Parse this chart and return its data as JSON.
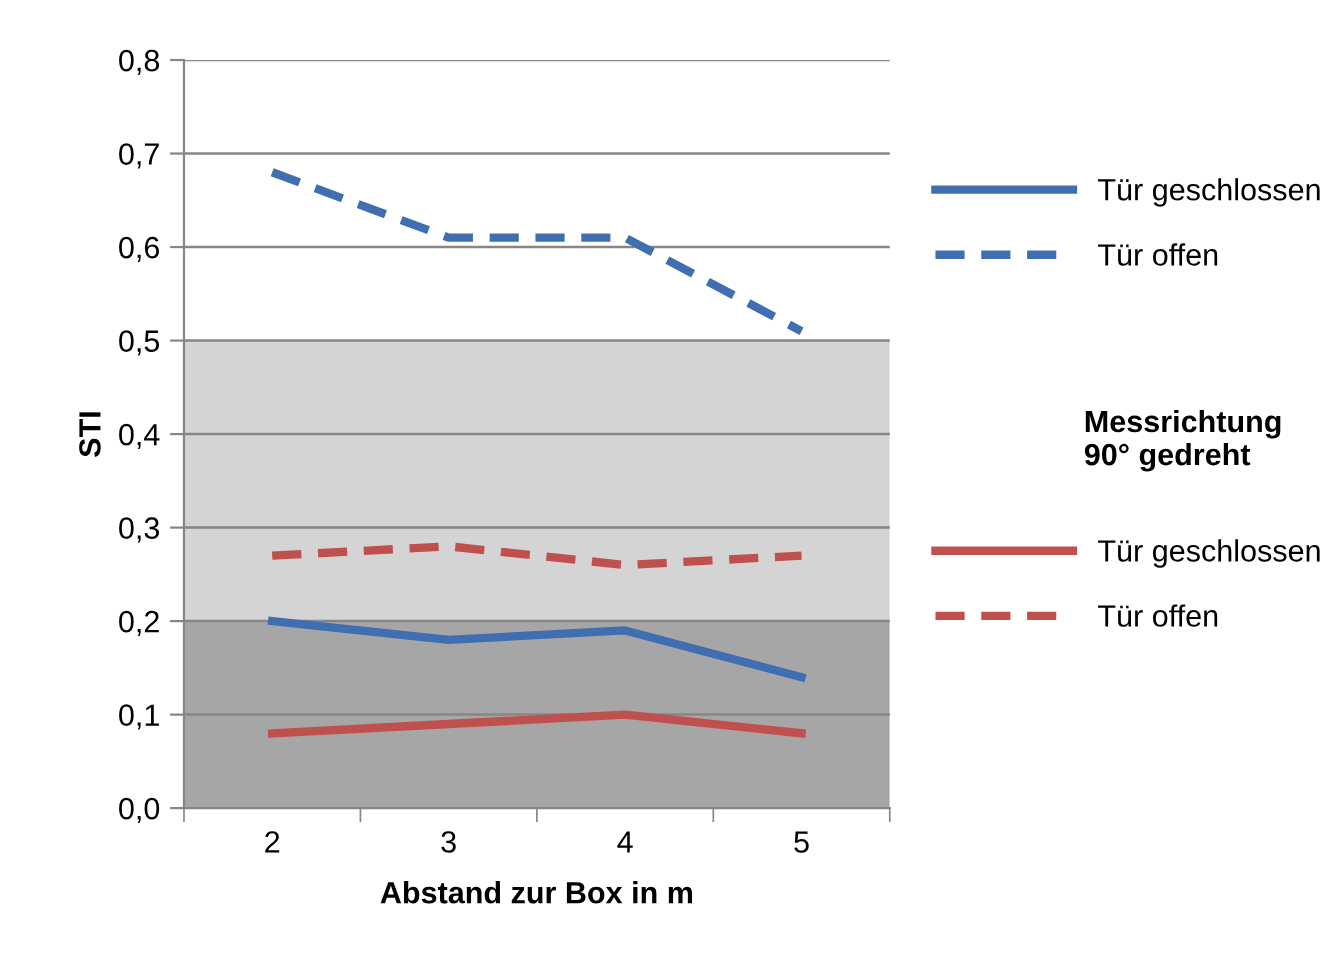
{
  "chart_data": {
    "type": "line",
    "xlabel": "Abstand zur Box in m",
    "ylabel": "STI",
    "categories": [
      "2",
      "3",
      "4",
      "5"
    ],
    "series": [
      {
        "name": "Tür geschlossen",
        "color": "#3f6fb0",
        "line_style": "solid",
        "values": [
          0.2,
          0.18,
          0.19,
          0.14
        ]
      },
      {
        "name": "Tür offen",
        "color": "#3f6fb0",
        "line_style": "dashed",
        "values": [
          0.68,
          0.61,
          0.61,
          0.51
        ]
      },
      {
        "name": "Tür geschlossen",
        "color": "#c0504d",
        "line_style": "solid",
        "values": [
          0.08,
          0.09,
          0.1,
          0.08
        ]
      },
      {
        "name": "Tür offen",
        "color": "#c0504d",
        "line_style": "dashed",
        "values": [
          0.27,
          0.28,
          0.26,
          0.27
        ]
      }
    ],
    "annotations": [
      "Messrichtung 90° gedreht"
    ],
    "bands": [
      {
        "axis": "y",
        "from": 0,
        "to": 0.2,
        "color": "#a6a6a6"
      },
      {
        "axis": "y",
        "from": 0.2,
        "to": 0.5,
        "color": "#d4d4d4"
      }
    ],
    "ylim": [
      0,
      0.8
    ],
    "yticks": [
      {
        "value": 0,
        "label": "0,0"
      },
      {
        "value": 0.1,
        "label": "0,1"
      },
      {
        "value": 0.2,
        "label": "0,2"
      },
      {
        "value": 0.3,
        "label": "0,3"
      },
      {
        "value": 0.4,
        "label": "0,4"
      },
      {
        "value": 0.5,
        "label": "0,5"
      },
      {
        "value": 0.6,
        "label": "0,6"
      },
      {
        "value": 0.7,
        "label": "0,7"
      },
      {
        "value": 0.8,
        "label": "0,8"
      }
    ],
    "grid": "y",
    "legend": "right",
    "marker": "none"
  }
}
